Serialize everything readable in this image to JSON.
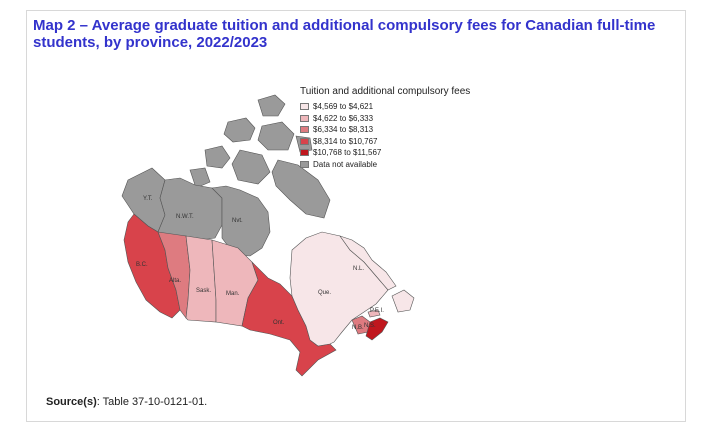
{
  "title": "Map 2 –  Average graduate tuition and additional compulsory fees for Canadian full-time students, by province, 2022/2023",
  "legend": {
    "title": "Tuition and additional compulsory fees",
    "items": [
      {
        "label": "$4,569 to $4,621",
        "color": "#f7e6e8"
      },
      {
        "label": "$4,622 to $6,333",
        "color": "#eeb7bb"
      },
      {
        "label": "$6,334 to $8,313",
        "color": "#de7b80"
      },
      {
        "label": "$8,314 to $10,767",
        "color": "#d8434b"
      },
      {
        "label": "$10,768 to $11,567",
        "color": "#c0171e"
      },
      {
        "label": "Data not available",
        "color": "#9a9a9a"
      }
    ]
  },
  "regions": {
    "yukon": {
      "label": "Y.T.",
      "color": "#9a9a9a"
    },
    "nwt": {
      "label": "N.W.T.",
      "color": "#9a9a9a"
    },
    "nunavut": {
      "label": "Nvt.",
      "color": "#9a9a9a"
    },
    "bc": {
      "label": "B.C.",
      "color": "#d8434b"
    },
    "alberta": {
      "label": "Alta.",
      "color": "#de7b80"
    },
    "sask": {
      "label": "Sask.",
      "color": "#eeb7bb"
    },
    "manitoba": {
      "label": "Man.",
      "color": "#eeb7bb"
    },
    "ontario": {
      "label": "Ont.",
      "color": "#d8434b"
    },
    "quebec": {
      "label": "Que.",
      "color": "#f7e6e8"
    },
    "nl": {
      "label": "N.L.",
      "color": "#f7e6e8"
    },
    "pei": {
      "label": "P.E.I.",
      "color": "#eeb7bb"
    },
    "ns": {
      "label": "N.S.",
      "color": "#c0171e"
    },
    "nb": {
      "label": "N.B.",
      "color": "#de7b80"
    }
  },
  "source": {
    "label": "Source(s)",
    "text": ": Table 37-10-0121-01."
  }
}
